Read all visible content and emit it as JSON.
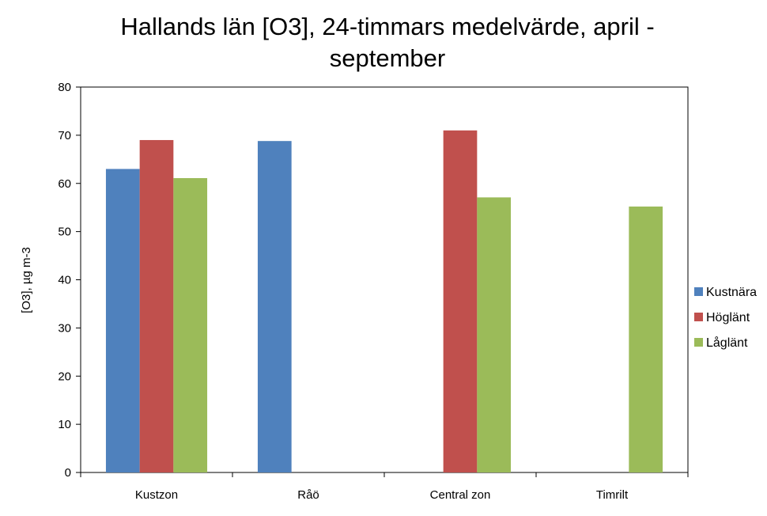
{
  "chart_data": {
    "type": "bar",
    "title_line1": "Hallands län [O3], 24-timmars medelvärde, april -",
    "title_line2": "september",
    "xlabel": "",
    "ylabel": "[O3], µg m-3",
    "ylim": [
      0,
      80
    ],
    "yticks": [
      0,
      10,
      20,
      30,
      40,
      50,
      60,
      70,
      80
    ],
    "grid": false,
    "legend_position": "right",
    "categories": [
      "Kustzon",
      "Råö",
      "Central zon",
      "Timrilt"
    ],
    "series": [
      {
        "name": "Kustnära",
        "color": "#4f81bd",
        "values": [
          63,
          68.8,
          null,
          null
        ]
      },
      {
        "name": "Höglänt",
        "color": "#c0504d",
        "values": [
          69,
          null,
          71,
          null
        ]
      },
      {
        "name": "Låglänt",
        "color": "#9bbb59",
        "values": [
          61.1,
          null,
          57.1,
          55.2
        ]
      }
    ]
  }
}
